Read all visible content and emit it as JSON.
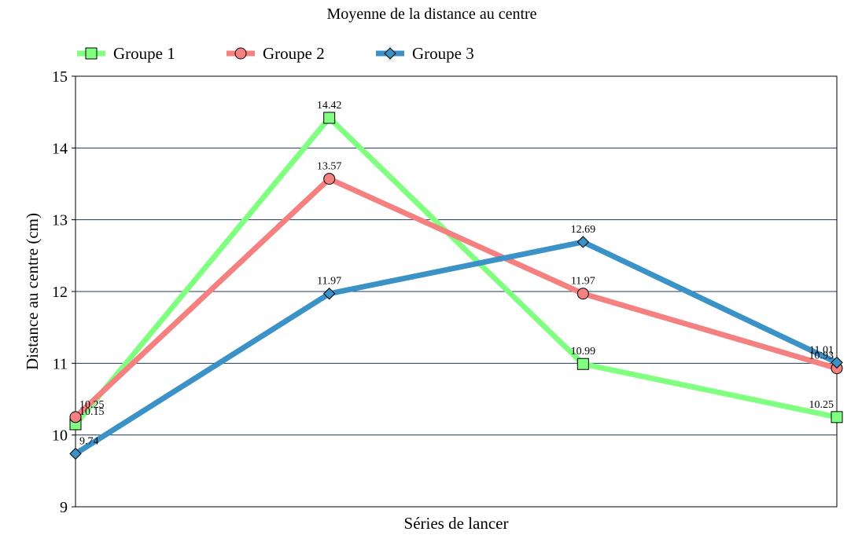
{
  "chart_data": {
    "type": "line",
    "title": "Moyenne de la distance au centre",
    "xlabel": "Séries de lancer",
    "ylabel": "Distance au centre (cm)",
    "ylim": [
      9,
      15
    ],
    "yticks": [
      9,
      10,
      11,
      12,
      13,
      14,
      15
    ],
    "x": [
      1,
      2,
      3,
      4
    ],
    "grid": true,
    "legend": "top-left",
    "series": [
      {
        "name": "Groupe 1",
        "color": "#80ff80",
        "marker": "square",
        "values": [
          10.15,
          14.42,
          10.99,
          10.25
        ],
        "labels": [
          "10.15",
          "14.42",
          "10.99",
          "10.25"
        ]
      },
      {
        "name": "Groupe 2",
        "color": "#f58080",
        "marker": "circle",
        "values": [
          10.25,
          13.57,
          11.97,
          10.93
        ],
        "labels": [
          "10.25",
          "13.57",
          "11.97",
          "10.93"
        ]
      },
      {
        "name": "Groupe 3",
        "color": "#3b92c7",
        "marker": "diamond",
        "values": [
          9.74,
          11.97,
          12.69,
          11.01
        ],
        "labels": [
          "9.74",
          "11.97",
          "12.69",
          "11.01"
        ]
      }
    ]
  }
}
